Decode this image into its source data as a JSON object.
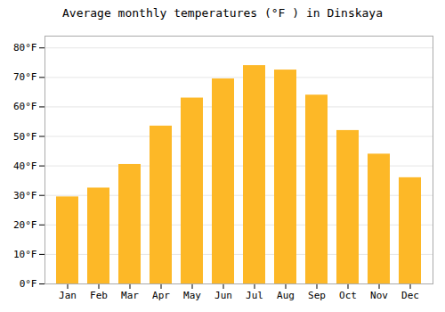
{
  "chart_data": {
    "type": "bar",
    "title": "Average monthly temperatures (°F ) in Dinskaya",
    "categories": [
      "Jan",
      "Feb",
      "Mar",
      "Apr",
      "May",
      "Jun",
      "Jul",
      "Aug",
      "Sep",
      "Oct",
      "Nov",
      "Dec"
    ],
    "values": [
      29.5,
      32.5,
      40.5,
      53.5,
      63.0,
      69.5,
      74.0,
      72.5,
      64.0,
      52.0,
      44.0,
      36.0
    ],
    "color": "#FDB827",
    "ylim": [
      0,
      84
    ],
    "yticks": [
      {
        "value": 0,
        "label": "0°F"
      },
      {
        "value": 10,
        "label": "10°F"
      },
      {
        "value": 20,
        "label": "20°F"
      },
      {
        "value": 30,
        "label": "30°F"
      },
      {
        "value": 40,
        "label": "40°F"
      },
      {
        "value": 50,
        "label": "50°F"
      },
      {
        "value": 60,
        "label": "60°F"
      },
      {
        "value": 70,
        "label": "70°F"
      },
      {
        "value": 80,
        "label": "80°F"
      }
    ],
    "grid": true
  }
}
